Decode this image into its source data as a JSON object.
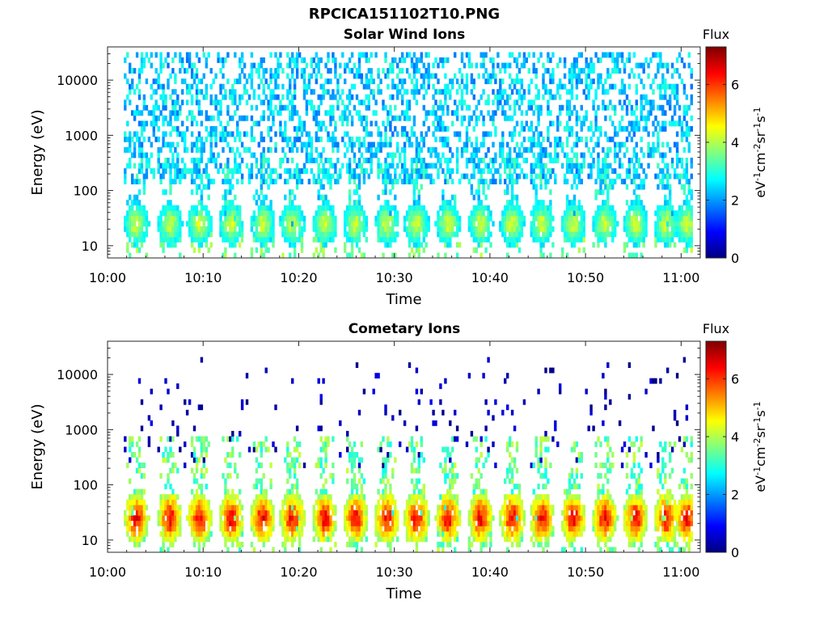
{
  "figure": {
    "title": "RPCICA151102T10.PNG"
  },
  "chart_data": [
    {
      "type": "heatmap",
      "title": "Solar Wind Ions",
      "xlabel": "Time",
      "ylabel": "Energy (eV)",
      "x_ticks": [
        "10:00",
        "10:10",
        "10:20",
        "10:30",
        "10:40",
        "10:50",
        "11:00"
      ],
      "x_range_minutes": [
        0,
        62
      ],
      "y_scale": "log",
      "y_ticks": [
        10,
        100,
        1000,
        10000
      ],
      "y_tick_labels": [
        "10",
        "100",
        "1000",
        "10000"
      ],
      "y_range": [
        6,
        40000
      ],
      "colorbar": {
        "title": "Flux",
        "label": "eV-1cm-2sr-1s-1",
        "ticks": [
          0,
          2,
          4,
          6
        ],
        "range": [
          0,
          7.3
        ],
        "colormap": "jet"
      },
      "data_start_minute": 1.7,
      "data_end_minute": 61.2,
      "bursts_minutes": [
        2.9,
        6.4,
        9.5,
        12.8,
        16.1,
        19.2,
        22.6,
        25.8,
        29.1,
        32.2,
        35.5,
        38.9,
        42.2,
        45.3,
        48.6,
        51.9,
        55.1,
        58.3,
        60.5
      ],
      "peak_flux": 4.6,
      "peak_energy_eV": 25,
      "background_flux": 2.4,
      "background_energy_range_eV": [
        300,
        30000
      ]
    },
    {
      "type": "heatmap",
      "title": "Cometary Ions",
      "xlabel": "Time",
      "ylabel": "Energy (eV)",
      "x_ticks": [
        "10:00",
        "10:10",
        "10:20",
        "10:30",
        "10:40",
        "10:50",
        "11:00"
      ],
      "x_range_minutes": [
        0,
        62
      ],
      "y_scale": "log",
      "y_ticks": [
        10,
        100,
        1000,
        10000
      ],
      "y_tick_labels": [
        "10",
        "100",
        "1000",
        "10000"
      ],
      "y_range": [
        6,
        40000
      ],
      "colorbar": {
        "title": "Flux",
        "label": "eV-1cm-2sr-1s-1",
        "ticks": [
          0,
          2,
          4,
          6
        ],
        "range": [
          0,
          7.3
        ],
        "colormap": "jet"
      },
      "data_start_minute": 1.7,
      "data_end_minute": 61.2,
      "bursts_minutes": [
        2.9,
        6.4,
        9.5,
        12.8,
        16.1,
        19.2,
        22.6,
        25.8,
        29.1,
        32.2,
        35.5,
        38.9,
        42.2,
        45.3,
        48.6,
        51.9,
        55.1,
        58.3,
        60.5
      ],
      "peak_flux": 6.9,
      "peak_energy_eV": 25,
      "background_flux": 0.4,
      "background_energy_range_eV": [
        500,
        20000
      ]
    }
  ]
}
